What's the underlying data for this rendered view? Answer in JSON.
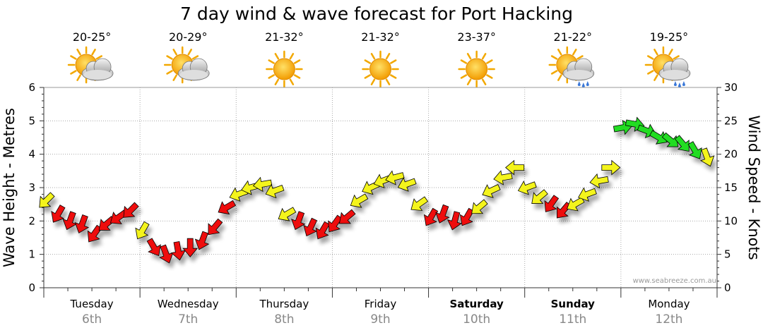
{
  "chart_data": {
    "type": "line",
    "title": "7 day wind & wave forecast for Port Hacking",
    "ylabel_left": "Wave Height - Metres",
    "ylabel_right": "Wind Speed - Knots",
    "ylim_left": [
      0,
      6
    ],
    "ylim_right": [
      0,
      30
    ],
    "yticks_left": [
      "0",
      "1",
      "2",
      "3",
      "4",
      "5",
      "6"
    ],
    "yticks_right": [
      "0",
      "5",
      "10",
      "15",
      "20",
      "25",
      "30"
    ],
    "grid": true,
    "credit": "www.seabreeze.com.au",
    "days": [
      {
        "name": "Tuesday",
        "date": "6th",
        "bold": false,
        "temp": "20-25°",
        "weather": "partly-cloudy"
      },
      {
        "name": "Wednesday",
        "date": "7th",
        "bold": false,
        "temp": "20-29°",
        "weather": "partly-cloudy"
      },
      {
        "name": "Thursday",
        "date": "8th",
        "bold": false,
        "temp": "21-32°",
        "weather": "sunny"
      },
      {
        "name": "Friday",
        "date": "9th",
        "bold": false,
        "temp": "21-32°",
        "weather": "sunny"
      },
      {
        "name": "Saturday",
        "date": "10th",
        "bold": true,
        "temp": "23-37°",
        "weather": "sunny"
      },
      {
        "name": "Sunday",
        "date": "11th",
        "bold": true,
        "temp": "21-22°",
        "weather": "showers"
      },
      {
        "name": "Monday",
        "date": "12th",
        "bold": false,
        "temp": "19-25°",
        "weather": "showers"
      }
    ],
    "colors": {
      "low": "#ee1111",
      "mid": "#f4f41a",
      "high": "#22dd22",
      "outline": "#000000",
      "grid": "#aaaaaa"
    },
    "series": [
      {
        "name": "Wind",
        "x_hours": [
          0,
          3,
          6,
          9,
          12,
          15,
          18,
          21,
          24,
          27,
          30,
          33,
          36,
          39,
          42,
          45,
          48,
          51,
          54,
          57,
          60,
          63,
          66,
          69,
          72,
          75,
          78,
          81,
          84,
          87,
          90,
          93,
          96,
          99,
          102,
          105,
          108,
          111,
          114,
          117,
          120,
          123,
          126,
          129,
          132,
          135,
          138,
          141,
          144,
          147,
          150,
          153,
          156,
          159,
          162,
          165
        ],
        "knots": [
          14,
          11,
          10,
          9,
          8,
          9,
          10,
          11,
          12,
          7,
          5,
          6,
          6,
          7,
          8,
          10,
          12,
          14,
          15,
          16,
          16,
          11,
          10,
          9,
          9,
          10,
          14,
          16,
          17,
          18,
          17,
          13,
          11,
          11,
          10,
          10,
          12,
          14,
          17,
          19,
          16,
          13,
          11,
          10,
          12,
          14,
          16,
          17,
          21,
          24,
          25,
          24,
          23,
          22,
          21,
          19
        ]
      },
      {
        "name": "Waves",
        "wave_m": [
          2.6,
          2.2,
          2.0,
          1.9,
          1.6,
          1.9,
          2.1,
          2.3,
          1.7,
          1.2,
          1.0,
          1.1,
          1.2,
          1.4,
          1.8,
          2.4,
          2.8,
          3.0,
          3.1,
          2.9,
          2.2,
          2.0,
          1.8,
          1.7,
          1.9,
          2.1,
          2.6,
          3.0,
          3.2,
          3.3,
          3.1,
          2.5,
          2.1,
          2.2,
          2.0,
          2.1,
          2.4,
          2.9,
          3.3,
          3.6,
          3.0,
          2.7,
          2.5,
          2.3,
          2.5,
          2.8,
          3.2,
          3.6,
          4.8,
          4.9,
          4.7,
          4.5,
          4.4,
          4.3,
          4.1,
          3.9
        ]
      }
    ]
  }
}
